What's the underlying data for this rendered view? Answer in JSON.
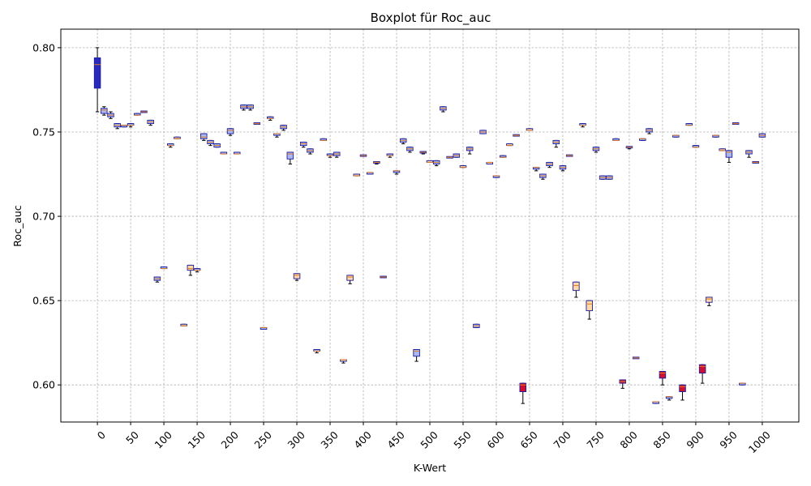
{
  "chart_data": {
    "type": "boxplot",
    "title": "Boxplot für Roc_auc",
    "xlabel": "K-Wert",
    "ylabel": "Roc_auc",
    "xlim": [
      -55,
      1055
    ],
    "ylim": [
      0.578,
      0.811
    ],
    "grid": true,
    "xticks": [
      0,
      50,
      100,
      150,
      200,
      250,
      300,
      350,
      400,
      450,
      500,
      550,
      600,
      650,
      700,
      750,
      800,
      850,
      900,
      950,
      1000
    ],
    "xtick_labels": [
      "0",
      "50",
      "100",
      "150",
      "200",
      "250",
      "300",
      "350",
      "400",
      "450",
      "500",
      "550",
      "600",
      "650",
      "700",
      "750",
      "800",
      "850",
      "900",
      "950",
      "1000"
    ],
    "yticks": [
      0.6,
      0.65,
      0.7,
      0.75,
      0.8
    ],
    "ytick_labels": [
      "0.60",
      "0.65",
      "0.70",
      "0.75",
      "0.80"
    ],
    "colors": {
      "box_dark": "#2a2ab8",
      "box_light": "#aab8f0",
      "box_orange": "#ffd9a8",
      "box_red": "#cc1133",
      "median": "#e07b22",
      "box_edge": "#1a1aa0"
    },
    "boxes": [
      {
        "k": 0,
        "q1": 0.776,
        "q3": 0.794,
        "med": 0.79,
        "lo": 0.762,
        "hi": 0.8,
        "color": "dark"
      },
      {
        "k": 10,
        "q1": 0.761,
        "q3": 0.764,
        "med": 0.763,
        "lo": 0.76,
        "hi": 0.765,
        "color": "light"
      },
      {
        "k": 20,
        "q1": 0.759,
        "q3": 0.761,
        "med": 0.76,
        "lo": 0.758,
        "hi": 0.762,
        "color": "light"
      },
      {
        "k": 30,
        "q1": 0.753,
        "q3": 0.755,
        "med": 0.754,
        "lo": 0.752,
        "hi": 0.755,
        "color": "light"
      },
      {
        "k": 40,
        "q1": 0.753,
        "q3": 0.754,
        "med": 0.754,
        "lo": 0.753,
        "hi": 0.754,
        "color": "light"
      },
      {
        "k": 50,
        "q1": 0.754,
        "q3": 0.755,
        "med": 0.754,
        "lo": 0.753,
        "hi": 0.755,
        "color": "light"
      },
      {
        "k": 60,
        "q1": 0.76,
        "q3": 0.761,
        "med": 0.76,
        "lo": 0.76,
        "hi": 0.761,
        "color": "light"
      },
      {
        "k": 70,
        "q1": 0.762,
        "q3": 0.762,
        "med": 0.762,
        "lo": 0.762,
        "hi": 0.762,
        "color": "orange"
      },
      {
        "k": 80,
        "q1": 0.755,
        "q3": 0.757,
        "med": 0.756,
        "lo": 0.754,
        "hi": 0.757,
        "color": "light"
      },
      {
        "k": 90,
        "q1": 0.662,
        "q3": 0.664,
        "med": 0.663,
        "lo": 0.661,
        "hi": 0.664,
        "color": "light"
      },
      {
        "k": 100,
        "q1": 0.669,
        "q3": 0.67,
        "med": 0.669,
        "lo": 0.669,
        "hi": 0.67,
        "color": "light"
      },
      {
        "k": 110,
        "q1": 0.742,
        "q3": 0.743,
        "med": 0.742,
        "lo": 0.741,
        "hi": 0.743,
        "color": "light"
      },
      {
        "k": 120,
        "q1": 0.746,
        "q3": 0.747,
        "med": 0.746,
        "lo": 0.746,
        "hi": 0.747,
        "color": "orange"
      },
      {
        "k": 130,
        "q1": 0.635,
        "q3": 0.636,
        "med": 0.635,
        "lo": 0.635,
        "hi": 0.636,
        "color": "orange"
      },
      {
        "k": 140,
        "q1": 0.668,
        "q3": 0.671,
        "med": 0.669,
        "lo": 0.665,
        "hi": 0.671,
        "color": "orange"
      },
      {
        "k": 150,
        "q1": 0.668,
        "q3": 0.669,
        "med": 0.668,
        "lo": 0.667,
        "hi": 0.669,
        "color": "light"
      },
      {
        "k": 160,
        "q1": 0.746,
        "q3": 0.749,
        "med": 0.747,
        "lo": 0.745,
        "hi": 0.749,
        "color": "light"
      },
      {
        "k": 170,
        "q1": 0.743,
        "q3": 0.745,
        "med": 0.744,
        "lo": 0.742,
        "hi": 0.745,
        "color": "light"
      },
      {
        "k": 180,
        "q1": 0.741,
        "q3": 0.743,
        "med": 0.742,
        "lo": 0.741,
        "hi": 0.743,
        "color": "light"
      },
      {
        "k": 190,
        "q1": 0.737,
        "q3": 0.738,
        "med": 0.737,
        "lo": 0.737,
        "hi": 0.738,
        "color": "light"
      },
      {
        "k": 200,
        "q1": 0.749,
        "q3": 0.752,
        "med": 0.751,
        "lo": 0.748,
        "hi": 0.752,
        "color": "light"
      },
      {
        "k": 210,
        "q1": 0.737,
        "q3": 0.738,
        "med": 0.737,
        "lo": 0.737,
        "hi": 0.738,
        "color": "light"
      },
      {
        "k": 220,
        "q1": 0.764,
        "q3": 0.766,
        "med": 0.765,
        "lo": 0.763,
        "hi": 0.766,
        "color": "light"
      },
      {
        "k": 230,
        "q1": 0.764,
        "q3": 0.766,
        "med": 0.765,
        "lo": 0.763,
        "hi": 0.766,
        "color": "light"
      },
      {
        "k": 240,
        "q1": 0.755,
        "q3": 0.755,
        "med": 0.755,
        "lo": 0.755,
        "hi": 0.755,
        "color": "orange"
      },
      {
        "k": 250,
        "q1": 0.633,
        "q3": 0.634,
        "med": 0.634,
        "lo": 0.633,
        "hi": 0.634,
        "color": "light"
      },
      {
        "k": 260,
        "q1": 0.758,
        "q3": 0.759,
        "med": 0.758,
        "lo": 0.757,
        "hi": 0.759,
        "color": "light"
      },
      {
        "k": 270,
        "q1": 0.748,
        "q3": 0.749,
        "med": 0.749,
        "lo": 0.747,
        "hi": 0.749,
        "color": "light"
      },
      {
        "k": 280,
        "q1": 0.752,
        "q3": 0.754,
        "med": 0.753,
        "lo": 0.751,
        "hi": 0.754,
        "color": "light"
      },
      {
        "k": 290,
        "q1": 0.734,
        "q3": 0.738,
        "med": 0.737,
        "lo": 0.731,
        "hi": 0.738,
        "color": "light"
      },
      {
        "k": 300,
        "q1": 0.663,
        "q3": 0.666,
        "med": 0.665,
        "lo": 0.662,
        "hi": 0.666,
        "color": "orange"
      },
      {
        "k": 310,
        "q1": 0.742,
        "q3": 0.744,
        "med": 0.743,
        "lo": 0.741,
        "hi": 0.744,
        "color": "light"
      },
      {
        "k": 320,
        "q1": 0.738,
        "q3": 0.74,
        "med": 0.739,
        "lo": 0.737,
        "hi": 0.74,
        "color": "light"
      },
      {
        "k": 330,
        "q1": 0.62,
        "q3": 0.621,
        "med": 0.62,
        "lo": 0.619,
        "hi": 0.621,
        "color": "light"
      },
      {
        "k": 340,
        "q1": 0.745,
        "q3": 0.746,
        "med": 0.745,
        "lo": 0.745,
        "hi": 0.746,
        "color": "light"
      },
      {
        "k": 350,
        "q1": 0.736,
        "q3": 0.737,
        "med": 0.736,
        "lo": 0.735,
        "hi": 0.737,
        "color": "light"
      },
      {
        "k": 360,
        "q1": 0.736,
        "q3": 0.738,
        "med": 0.737,
        "lo": 0.735,
        "hi": 0.738,
        "color": "light"
      },
      {
        "k": 370,
        "q1": 0.614,
        "q3": 0.615,
        "med": 0.615,
        "lo": 0.613,
        "hi": 0.615,
        "color": "orange"
      },
      {
        "k": 380,
        "q1": 0.662,
        "q3": 0.665,
        "med": 0.664,
        "lo": 0.66,
        "hi": 0.665,
        "color": "orange"
      },
      {
        "k": 390,
        "q1": 0.724,
        "q3": 0.725,
        "med": 0.724,
        "lo": 0.724,
        "hi": 0.725,
        "color": "orange"
      },
      {
        "k": 400,
        "q1": 0.736,
        "q3": 0.736,
        "med": 0.736,
        "lo": 0.736,
        "hi": 0.736,
        "color": "orange"
      },
      {
        "k": 410,
        "q1": 0.725,
        "q3": 0.726,
        "med": 0.726,
        "lo": 0.725,
        "hi": 0.726,
        "color": "light"
      },
      {
        "k": 420,
        "q1": 0.732,
        "q3": 0.732,
        "med": 0.732,
        "lo": 0.731,
        "hi": 0.732,
        "color": "orange"
      },
      {
        "k": 430,
        "q1": 0.664,
        "q3": 0.664,
        "med": 0.664,
        "lo": 0.664,
        "hi": 0.664,
        "color": "orange"
      },
      {
        "k": 440,
        "q1": 0.736,
        "q3": 0.737,
        "med": 0.736,
        "lo": 0.735,
        "hi": 0.737,
        "color": "light"
      },
      {
        "k": 450,
        "q1": 0.726,
        "q3": 0.727,
        "med": 0.727,
        "lo": 0.725,
        "hi": 0.727,
        "color": "light"
      },
      {
        "k": 460,
        "q1": 0.744,
        "q3": 0.746,
        "med": 0.745,
        "lo": 0.743,
        "hi": 0.746,
        "color": "light"
      },
      {
        "k": 470,
        "q1": 0.739,
        "q3": 0.741,
        "med": 0.74,
        "lo": 0.738,
        "hi": 0.741,
        "color": "light"
      },
      {
        "k": 480,
        "q1": 0.617,
        "q3": 0.621,
        "med": 0.62,
        "lo": 0.614,
        "hi": 0.621,
        "color": "light"
      },
      {
        "k": 490,
        "q1": 0.738,
        "q3": 0.738,
        "med": 0.738,
        "lo": 0.737,
        "hi": 0.738,
        "color": "light"
      },
      {
        "k": 500,
        "q1": 0.732,
        "q3": 0.733,
        "med": 0.732,
        "lo": 0.732,
        "hi": 0.733,
        "color": "orange"
      },
      {
        "k": 510,
        "q1": 0.731,
        "q3": 0.733,
        "med": 0.732,
        "lo": 0.73,
        "hi": 0.733,
        "color": "light"
      },
      {
        "k": 520,
        "q1": 0.763,
        "q3": 0.765,
        "med": 0.764,
        "lo": 0.762,
        "hi": 0.765,
        "color": "light"
      },
      {
        "k": 530,
        "q1": 0.735,
        "q3": 0.735,
        "med": 0.735,
        "lo": 0.735,
        "hi": 0.735,
        "color": "orange"
      },
      {
        "k": 540,
        "q1": 0.735,
        "q3": 0.737,
        "med": 0.736,
        "lo": 0.735,
        "hi": 0.737,
        "color": "light"
      },
      {
        "k": 550,
        "q1": 0.729,
        "q3": 0.73,
        "med": 0.729,
        "lo": 0.729,
        "hi": 0.73,
        "color": "orange"
      },
      {
        "k": 560,
        "q1": 0.739,
        "q3": 0.741,
        "med": 0.74,
        "lo": 0.737,
        "hi": 0.741,
        "color": "light"
      },
      {
        "k": 570,
        "q1": 0.634,
        "q3": 0.636,
        "med": 0.635,
        "lo": 0.634,
        "hi": 0.636,
        "color": "light"
      },
      {
        "k": 580,
        "q1": 0.749,
        "q3": 0.751,
        "med": 0.75,
        "lo": 0.749,
        "hi": 0.751,
        "color": "light"
      },
      {
        "k": 590,
        "q1": 0.731,
        "q3": 0.732,
        "med": 0.732,
        "lo": 0.731,
        "hi": 0.732,
        "color": "orange"
      },
      {
        "k": 600,
        "q1": 0.723,
        "q3": 0.724,
        "med": 0.724,
        "lo": 0.723,
        "hi": 0.724,
        "color": "light"
      },
      {
        "k": 610,
        "q1": 0.735,
        "q3": 0.736,
        "med": 0.735,
        "lo": 0.735,
        "hi": 0.736,
        "color": "light"
      },
      {
        "k": 620,
        "q1": 0.742,
        "q3": 0.743,
        "med": 0.742,
        "lo": 0.742,
        "hi": 0.743,
        "color": "orange"
      },
      {
        "k": 630,
        "q1": 0.748,
        "q3": 0.748,
        "med": 0.748,
        "lo": 0.748,
        "hi": 0.748,
        "color": "orange"
      },
      {
        "k": 640,
        "q1": 0.596,
        "q3": 0.601,
        "med": 0.6,
        "lo": 0.589,
        "hi": 0.601,
        "color": "red"
      },
      {
        "k": 650,
        "q1": 0.751,
        "q3": 0.752,
        "med": 0.751,
        "lo": 0.751,
        "hi": 0.752,
        "color": "orange"
      },
      {
        "k": 660,
        "q1": 0.728,
        "q3": 0.729,
        "med": 0.729,
        "lo": 0.727,
        "hi": 0.729,
        "color": "light"
      },
      {
        "k": 670,
        "q1": 0.723,
        "q3": 0.725,
        "med": 0.724,
        "lo": 0.722,
        "hi": 0.725,
        "color": "light"
      },
      {
        "k": 680,
        "q1": 0.73,
        "q3": 0.732,
        "med": 0.731,
        "lo": 0.729,
        "hi": 0.732,
        "color": "light"
      },
      {
        "k": 690,
        "q1": 0.743,
        "q3": 0.745,
        "med": 0.744,
        "lo": 0.741,
        "hi": 0.745,
        "color": "light"
      },
      {
        "k": 700,
        "q1": 0.728,
        "q3": 0.73,
        "med": 0.729,
        "lo": 0.727,
        "hi": 0.73,
        "color": "light"
      },
      {
        "k": 710,
        "q1": 0.736,
        "q3": 0.736,
        "med": 0.736,
        "lo": 0.736,
        "hi": 0.736,
        "color": "orange"
      },
      {
        "k": 720,
        "q1": 0.656,
        "q3": 0.661,
        "med": 0.659,
        "lo": 0.652,
        "hi": 0.661,
        "color": "orange"
      },
      {
        "k": 730,
        "q1": 0.754,
        "q3": 0.755,
        "med": 0.754,
        "lo": 0.753,
        "hi": 0.755,
        "color": "light"
      },
      {
        "k": 740,
        "q1": 0.644,
        "q3": 0.65,
        "med": 0.648,
        "lo": 0.639,
        "hi": 0.65,
        "color": "orange"
      },
      {
        "k": 750,
        "q1": 0.739,
        "q3": 0.741,
        "med": 0.74,
        "lo": 0.738,
        "hi": 0.741,
        "color": "light"
      },
      {
        "k": 760,
        "q1": 0.722,
        "q3": 0.724,
        "med": 0.723,
        "lo": 0.722,
        "hi": 0.724,
        "color": "light"
      },
      {
        "k": 770,
        "q1": 0.722,
        "q3": 0.724,
        "med": 0.723,
        "lo": 0.722,
        "hi": 0.724,
        "color": "light"
      },
      {
        "k": 780,
        "q1": 0.745,
        "q3": 0.746,
        "med": 0.745,
        "lo": 0.745,
        "hi": 0.746,
        "color": "light"
      },
      {
        "k": 790,
        "q1": 0.601,
        "q3": 0.603,
        "med": 0.602,
        "lo": 0.598,
        "hi": 0.603,
        "color": "red"
      },
      {
        "k": 800,
        "q1": 0.741,
        "q3": 0.741,
        "med": 0.741,
        "lo": 0.74,
        "hi": 0.741,
        "color": "light"
      },
      {
        "k": 810,
        "q1": 0.616,
        "q3": 0.616,
        "med": 0.616,
        "lo": 0.616,
        "hi": 0.616,
        "color": "orange"
      },
      {
        "k": 820,
        "q1": 0.745,
        "q3": 0.746,
        "med": 0.746,
        "lo": 0.745,
        "hi": 0.746,
        "color": "light"
      },
      {
        "k": 830,
        "q1": 0.75,
        "q3": 0.752,
        "med": 0.751,
        "lo": 0.749,
        "hi": 0.752,
        "color": "light"
      },
      {
        "k": 840,
        "q1": 0.589,
        "q3": 0.59,
        "med": 0.59,
        "lo": 0.589,
        "hi": 0.59,
        "color": "light"
      },
      {
        "k": 850,
        "q1": 0.604,
        "q3": 0.608,
        "med": 0.607,
        "lo": 0.6,
        "hi": 0.608,
        "color": "red"
      },
      {
        "k": 860,
        "q1": 0.592,
        "q3": 0.593,
        "med": 0.593,
        "lo": 0.591,
        "hi": 0.593,
        "color": "light"
      },
      {
        "k": 870,
        "q1": 0.747,
        "q3": 0.748,
        "med": 0.748,
        "lo": 0.747,
        "hi": 0.748,
        "color": "light"
      },
      {
        "k": 880,
        "q1": 0.596,
        "q3": 0.6,
        "med": 0.599,
        "lo": 0.591,
        "hi": 0.6,
        "color": "red"
      },
      {
        "k": 890,
        "q1": 0.754,
        "q3": 0.755,
        "med": 0.754,
        "lo": 0.754,
        "hi": 0.755,
        "color": "light"
      },
      {
        "k": 900,
        "q1": 0.741,
        "q3": 0.742,
        "med": 0.741,
        "lo": 0.741,
        "hi": 0.742,
        "color": "light"
      },
      {
        "k": 910,
        "q1": 0.607,
        "q3": 0.612,
        "med": 0.611,
        "lo": 0.601,
        "hi": 0.612,
        "color": "red"
      },
      {
        "k": 920,
        "q1": 0.649,
        "q3": 0.652,
        "med": 0.651,
        "lo": 0.647,
        "hi": 0.652,
        "color": "orange"
      },
      {
        "k": 930,
        "q1": 0.747,
        "q3": 0.748,
        "med": 0.748,
        "lo": 0.747,
        "hi": 0.748,
        "color": "light"
      },
      {
        "k": 940,
        "q1": 0.739,
        "q3": 0.74,
        "med": 0.739,
        "lo": 0.739,
        "hi": 0.74,
        "color": "orange"
      },
      {
        "k": 950,
        "q1": 0.735,
        "q3": 0.739,
        "med": 0.738,
        "lo": 0.732,
        "hi": 0.739,
        "color": "light"
      },
      {
        "k": 960,
        "q1": 0.755,
        "q3": 0.755,
        "med": 0.755,
        "lo": 0.755,
        "hi": 0.755,
        "color": "orange"
      },
      {
        "k": 970,
        "q1": 0.6,
        "q3": 0.601,
        "med": 0.601,
        "lo": 0.6,
        "hi": 0.601,
        "color": "light"
      },
      {
        "k": 980,
        "q1": 0.737,
        "q3": 0.739,
        "med": 0.738,
        "lo": 0.735,
        "hi": 0.739,
        "color": "light"
      },
      {
        "k": 990,
        "q1": 0.732,
        "q3": 0.732,
        "med": 0.732,
        "lo": 0.732,
        "hi": 0.732,
        "color": "orange"
      },
      {
        "k": 1000,
        "q1": 0.747,
        "q3": 0.749,
        "med": 0.748,
        "lo": 0.747,
        "hi": 0.749,
        "color": "light"
      }
    ]
  }
}
